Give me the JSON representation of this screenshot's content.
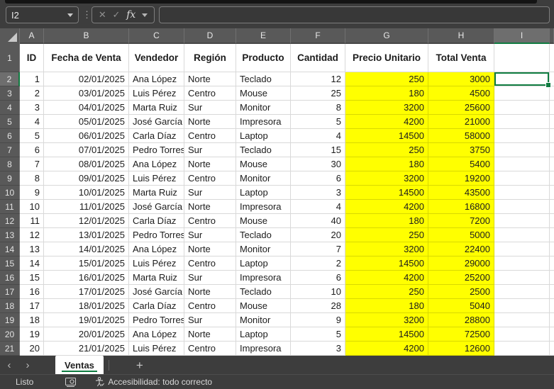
{
  "formula_bar": {
    "name_box_value": "I2",
    "value": ""
  },
  "icons": {
    "separator_dots": "⋮",
    "cancel": "✕",
    "enter": "✓",
    "function": "fx",
    "prev_sheet": "‹",
    "next_sheet": "›",
    "add_sheet": "+"
  },
  "colors": {
    "accent_green": "#107C41",
    "highlight_yellow": "#FFFF00",
    "chrome_dark": "#3d3d3d",
    "header_gray": "#595959"
  },
  "grid": {
    "column_letters": [
      "A",
      "B",
      "C",
      "D",
      "E",
      "F",
      "G",
      "H",
      "I"
    ],
    "header_row": {
      "n": "1",
      "c": [
        "ID",
        "Fecha de Venta",
        "Vendedor",
        "Región",
        "Producto",
        "Cantidad",
        "Precio Unitario",
        "Total Venta"
      ]
    },
    "data_rows": [
      {
        "n": "2",
        "c": [
          "1",
          "02/01/2025",
          "Ana López",
          "Norte",
          "Teclado",
          "12",
          "250",
          "3000"
        ]
      },
      {
        "n": "3",
        "c": [
          "2",
          "03/01/2025",
          "Luis Pérez",
          "Centro",
          "Mouse",
          "25",
          "180",
          "4500"
        ]
      },
      {
        "n": "4",
        "c": [
          "3",
          "04/01/2025",
          "Marta Ruiz",
          "Sur",
          "Monitor",
          "8",
          "3200",
          "25600"
        ]
      },
      {
        "n": "5",
        "c": [
          "4",
          "05/01/2025",
          "José García",
          "Norte",
          "Impresora",
          "5",
          "4200",
          "21000"
        ]
      },
      {
        "n": "6",
        "c": [
          "5",
          "06/01/2025",
          "Carla Díaz",
          "Centro",
          "Laptop",
          "4",
          "14500",
          "58000"
        ]
      },
      {
        "n": "7",
        "c": [
          "6",
          "07/01/2025",
          "Pedro Torres",
          "Sur",
          "Teclado",
          "15",
          "250",
          "3750"
        ]
      },
      {
        "n": "8",
        "c": [
          "7",
          "08/01/2025",
          "Ana López",
          "Norte",
          "Mouse",
          "30",
          "180",
          "5400"
        ]
      },
      {
        "n": "9",
        "c": [
          "8",
          "09/01/2025",
          "Luis Pérez",
          "Centro",
          "Monitor",
          "6",
          "3200",
          "19200"
        ]
      },
      {
        "n": "10",
        "c": [
          "9",
          "10/01/2025",
          "Marta Ruiz",
          "Sur",
          "Laptop",
          "3",
          "14500",
          "43500"
        ]
      },
      {
        "n": "11",
        "c": [
          "10",
          "11/01/2025",
          "José García",
          "Norte",
          "Impresora",
          "4",
          "4200",
          "16800"
        ]
      },
      {
        "n": "12",
        "c": [
          "11",
          "12/01/2025",
          "Carla Díaz",
          "Centro",
          "Mouse",
          "40",
          "180",
          "7200"
        ]
      },
      {
        "n": "13",
        "c": [
          "12",
          "13/01/2025",
          "Pedro Torres",
          "Sur",
          "Teclado",
          "20",
          "250",
          "5000"
        ]
      },
      {
        "n": "14",
        "c": [
          "13",
          "14/01/2025",
          "Ana López",
          "Norte",
          "Monitor",
          "7",
          "3200",
          "22400"
        ]
      },
      {
        "n": "15",
        "c": [
          "14",
          "15/01/2025",
          "Luis Pérez",
          "Centro",
          "Laptop",
          "2",
          "14500",
          "29000"
        ]
      },
      {
        "n": "16",
        "c": [
          "15",
          "16/01/2025",
          "Marta Ruiz",
          "Sur",
          "Impresora",
          "6",
          "4200",
          "25200"
        ]
      },
      {
        "n": "17",
        "c": [
          "16",
          "17/01/2025",
          "José García",
          "Norte",
          "Teclado",
          "10",
          "250",
          "2500"
        ]
      },
      {
        "n": "18",
        "c": [
          "17",
          "18/01/2025",
          "Carla Díaz",
          "Centro",
          "Mouse",
          "28",
          "180",
          "5040"
        ]
      },
      {
        "n": "19",
        "c": [
          "18",
          "19/01/2025",
          "Pedro Torres",
          "Sur",
          "Monitor",
          "9",
          "3200",
          "28800"
        ]
      },
      {
        "n": "20",
        "c": [
          "19",
          "20/01/2025",
          "Ana López",
          "Norte",
          "Laptop",
          "5",
          "14500",
          "72500"
        ]
      },
      {
        "n": "21",
        "c": [
          "20",
          "21/01/2025",
          "Luis Pérez",
          "Centro",
          "Impresora",
          "3",
          "4200",
          "12600"
        ]
      }
    ],
    "selection": {
      "cell": "I2",
      "column": "I",
      "row": "2"
    }
  },
  "sheet_tabs": {
    "active_tab": "Ventas"
  },
  "status_bar": {
    "mode": "Listo",
    "accessibility": "Accesibilidad: todo correcto"
  }
}
